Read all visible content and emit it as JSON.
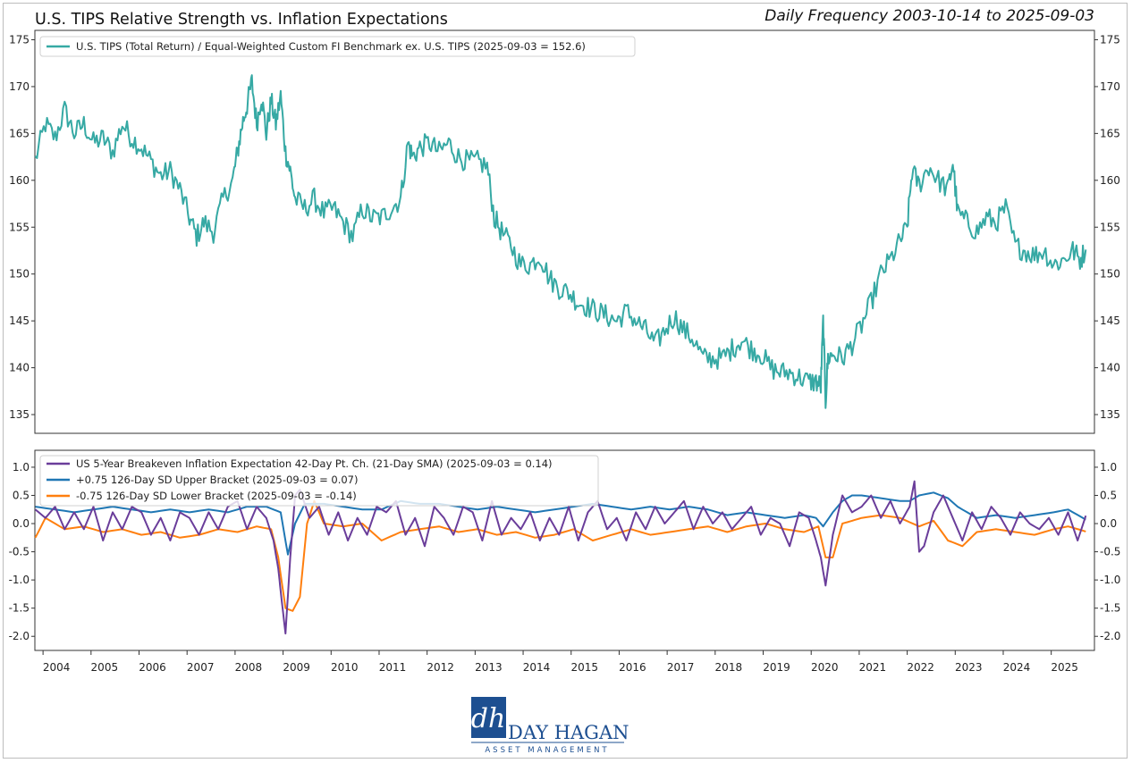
{
  "header": {
    "title": "U.S. TIPS Relative Strength vs. Inflation Expectations",
    "subtitle": "Daily Frequency 2003-10-14 to 2025-09-03"
  },
  "colors": {
    "tips": "#36a9a4",
    "breakeven": "#6a3d9a",
    "upper": "#1f77b4",
    "lower": "#ff7f0e"
  },
  "logo": {
    "mark": "dh",
    "name": "DAY HAGAN",
    "tagline": "ASSET MANAGEMENT"
  },
  "chart_data": [
    {
      "type": "line",
      "panel": "top",
      "ylim": [
        133,
        176
      ],
      "yticks": [
        135,
        140,
        145,
        150,
        155,
        160,
        165,
        170,
        175
      ],
      "xlim": [
        2003.78,
        2025.85
      ],
      "x_tick_labels": [
        "2004",
        "2005",
        "2006",
        "2007",
        "2008",
        "2009",
        "2010",
        "2011",
        "2012",
        "2013",
        "2014",
        "2015",
        "2016",
        "2017",
        "2018",
        "2019",
        "2020",
        "2021",
        "2022",
        "2023",
        "2024",
        "2025"
      ],
      "legend_position": "upper-left",
      "series": [
        {
          "name": "U.S. TIPS (Total Return) / Equal-Weighted Custom FI Benchmark ex. U.S. TIPS (2025-09-03 = 152.6)",
          "color_key": "tips",
          "x": [
            2003.79,
            2004.0,
            2004.2,
            2004.4,
            2004.6,
            2004.8,
            2005.0,
            2005.2,
            2005.4,
            2005.6,
            2005.8,
            2006.0,
            2006.2,
            2006.4,
            2006.6,
            2006.8,
            2007.0,
            2007.15,
            2007.3,
            2007.5,
            2007.7,
            2007.9,
            2008.0,
            2008.1,
            2008.2,
            2008.3,
            2008.4,
            2008.5,
            2008.6,
            2008.7,
            2008.8,
            2008.9,
            2009.0,
            2009.1,
            2009.2,
            2009.4,
            2009.6,
            2009.8,
            2010.0,
            2010.2,
            2010.4,
            2010.6,
            2010.8,
            2011.0,
            2011.2,
            2011.4,
            2011.55,
            2011.65,
            2011.8,
            2012.0,
            2012.2,
            2012.4,
            2012.6,
            2012.8,
            2013.0,
            2013.2,
            2013.35,
            2013.5,
            2013.7,
            2013.9,
            2014.1,
            2014.3,
            2014.5,
            2014.7,
            2014.9,
            2015.1,
            2015.3,
            2015.5,
            2015.7,
            2015.9,
            2016.1,
            2016.3,
            2016.5,
            2016.7,
            2016.9,
            2017.1,
            2017.3,
            2017.5,
            2017.7,
            2017.9,
            2018.1,
            2018.3,
            2018.5,
            2018.7,
            2018.9,
            2019.1,
            2019.3,
            2019.5,
            2019.7,
            2019.9,
            2020.05,
            2020.15,
            2020.2,
            2020.25,
            2020.3,
            2020.4,
            2020.6,
            2020.8,
            2021.0,
            2021.2,
            2021.4,
            2021.6,
            2021.8,
            2021.95,
            2022.05,
            2022.2,
            2022.4,
            2022.6,
            2022.8,
            2022.9,
            2023.0,
            2023.2,
            2023.4,
            2023.6,
            2023.8,
            2024.0,
            2024.2,
            2024.4,
            2024.6,
            2024.8,
            2025.0,
            2025.2,
            2025.4,
            2025.55,
            2025.67
          ],
          "values": [
            162.2,
            166.0,
            164.5,
            167.5,
            165.0,
            166.0,
            164.0,
            164.5,
            163.0,
            166.0,
            164.5,
            163.5,
            162.0,
            160.5,
            161.0,
            159.0,
            156.0,
            154.0,
            155.5,
            154.5,
            158.0,
            160.0,
            163.0,
            166.0,
            168.0,
            170.5,
            166.0,
            169.0,
            165.0,
            168.5,
            166.0,
            169.0,
            163.0,
            161.0,
            158.0,
            157.0,
            158.0,
            156.5,
            157.0,
            155.5,
            154.0,
            157.0,
            156.0,
            156.0,
            157.0,
            158.0,
            164.0,
            162.5,
            163.5,
            164.0,
            163.0,
            164.0,
            162.5,
            162.0,
            162.0,
            161.5,
            156.0,
            154.5,
            153.0,
            151.0,
            151.0,
            152.0,
            149.5,
            148.5,
            148.0,
            147.0,
            146.5,
            146.0,
            145.5,
            145.0,
            146.0,
            145.0,
            144.0,
            142.5,
            144.0,
            145.5,
            144.0,
            143.0,
            141.0,
            141.0,
            141.0,
            142.0,
            143.0,
            142.0,
            141.5,
            140.0,
            139.5,
            139.5,
            139.0,
            138.5,
            138.5,
            138.0,
            145.0,
            136.5,
            141.0,
            141.5,
            141.0,
            142.5,
            144.5,
            147.0,
            150.0,
            151.5,
            153.5,
            155.0,
            161.0,
            159.5,
            161.5,
            160.0,
            159.0,
            162.0,
            156.5,
            155.5,
            154.5,
            156.0,
            155.5,
            157.0,
            153.0,
            152.5,
            152.0,
            152.5,
            151.0,
            151.5,
            152.5,
            151.5,
            152.6
          ]
        }
      ]
    },
    {
      "type": "line",
      "panel": "bottom",
      "ylim": [
        -2.25,
        1.3
      ],
      "yticks": [
        -2.0,
        -1.5,
        -1.0,
        -0.5,
        0.0,
        0.5,
        1.0
      ],
      "ytick_labels": [
        "-2.0",
        "-1.5",
        "-1.0",
        "-0.5",
        "0.0",
        "0.5",
        "1.0"
      ],
      "xlim": [
        2003.78,
        2025.85
      ],
      "x_ticks": [
        2003.95,
        2004.95,
        2005.95,
        2006.95,
        2007.95,
        2008.95,
        2009.95,
        2010.95,
        2011.95,
        2012.95,
        2013.95,
        2014.95,
        2015.95,
        2016.95,
        2017.95,
        2018.95,
        2019.95,
        2020.95,
        2021.95,
        2022.95,
        2023.95,
        2024.95
      ],
      "x_tick_labels": [
        "2004",
        "2005",
        "2006",
        "2007",
        "2008",
        "2009",
        "2010",
        "2011",
        "2012",
        "2013",
        "2014",
        "2015",
        "2016",
        "2017",
        "2018",
        "2019",
        "2020",
        "2021",
        "2022",
        "2023",
        "2024",
        "2025"
      ],
      "legend_position": "upper-left",
      "series": [
        {
          "name": "US 5-Year Breakeven Inflation Expectation 42-Day Pt. Ch. (21-Day SMA) (2025-09-03 = 0.14)",
          "color_key": "breakeven",
          "x": [
            2003.79,
            2004.0,
            2004.2,
            2004.4,
            2004.6,
            2004.8,
            2005.0,
            2005.2,
            2005.4,
            2005.6,
            2005.8,
            2006.0,
            2006.2,
            2006.4,
            2006.6,
            2006.8,
            2007.0,
            2007.2,
            2007.4,
            2007.6,
            2007.8,
            2008.0,
            2008.2,
            2008.4,
            2008.6,
            2008.75,
            2008.85,
            2008.9,
            2009.0,
            2009.1,
            2009.2,
            2009.3,
            2009.5,
            2009.7,
            2009.9,
            2010.1,
            2010.3,
            2010.5,
            2010.7,
            2010.9,
            2011.1,
            2011.3,
            2011.5,
            2011.7,
            2011.9,
            2012.1,
            2012.3,
            2012.5,
            2012.7,
            2012.9,
            2013.1,
            2013.3,
            2013.5,
            2013.7,
            2013.9,
            2014.1,
            2014.3,
            2014.5,
            2014.7,
            2014.9,
            2015.1,
            2015.3,
            2015.5,
            2015.7,
            2015.9,
            2016.1,
            2016.3,
            2016.5,
            2016.7,
            2016.9,
            2017.1,
            2017.3,
            2017.5,
            2017.7,
            2017.9,
            2018.1,
            2018.3,
            2018.5,
            2018.7,
            2018.9,
            2019.1,
            2019.3,
            2019.5,
            2019.7,
            2019.9,
            2020.05,
            2020.15,
            2020.25,
            2020.4,
            2020.6,
            2020.8,
            2021.0,
            2021.2,
            2021.4,
            2021.6,
            2021.8,
            2022.0,
            2022.1,
            2022.2,
            2022.3,
            2022.5,
            2022.7,
            2022.9,
            2023.1,
            2023.3,
            2023.5,
            2023.7,
            2023.9,
            2024.1,
            2024.3,
            2024.5,
            2024.7,
            2024.9,
            2025.1,
            2025.3,
            2025.5,
            2025.67
          ],
          "values": [
            0.25,
            0.1,
            0.3,
            -0.1,
            0.2,
            -0.1,
            0.3,
            -0.3,
            0.2,
            -0.1,
            0.3,
            0.2,
            -0.2,
            0.1,
            -0.3,
            0.2,
            0.1,
            -0.2,
            0.2,
            -0.1,
            0.3,
            0.4,
            -0.1,
            0.3,
            0.1,
            -0.3,
            -0.8,
            -1.2,
            -1.95,
            -0.6,
            0.5,
            0.6,
            0.1,
            0.3,
            -0.2,
            0.2,
            -0.3,
            0.1,
            -0.2,
            0.3,
            0.2,
            0.4,
            -0.2,
            0.1,
            -0.4,
            0.3,
            0.1,
            -0.2,
            0.3,
            0.2,
            -0.3,
            0.4,
            -0.2,
            0.1,
            -0.1,
            0.2,
            -0.3,
            0.1,
            -0.2,
            0.3,
            -0.3,
            0.2,
            0.4,
            -0.1,
            0.1,
            -0.3,
            0.2,
            -0.1,
            0.3,
            0.0,
            0.2,
            0.4,
            -0.1,
            0.3,
            0.0,
            0.2,
            -0.1,
            0.1,
            0.3,
            -0.2,
            0.1,
            0.0,
            -0.4,
            0.2,
            0.1,
            -0.3,
            -0.6,
            -1.1,
            -0.2,
            0.5,
            0.2,
            0.3,
            0.5,
            0.1,
            0.4,
            0.0,
            0.3,
            0.75,
            -0.5,
            -0.4,
            0.2,
            0.5,
            0.1,
            -0.3,
            0.2,
            -0.1,
            0.3,
            0.1,
            -0.2,
            0.2,
            0.0,
            -0.1,
            0.1,
            -0.2,
            0.2,
            -0.3,
            0.14
          ]
        },
        {
          "name": "+0.75 126-Day SD Upper Bracket (2025-09-03 = 0.07)",
          "color_key": "upper",
          "x": [
            2003.79,
            2004.2,
            2004.6,
            2005.0,
            2005.4,
            2005.8,
            2006.2,
            2006.6,
            2007.0,
            2007.4,
            2007.8,
            2008.2,
            2008.6,
            2008.9,
            2009.05,
            2009.2,
            2009.4,
            2009.8,
            2010.2,
            2010.6,
            2011.0,
            2011.4,
            2011.8,
            2012.2,
            2012.6,
            2013.0,
            2013.4,
            2013.8,
            2014.2,
            2014.6,
            2015.0,
            2015.4,
            2015.8,
            2016.2,
            2016.6,
            2017.0,
            2017.4,
            2017.8,
            2018.2,
            2018.6,
            2019.0,
            2019.4,
            2019.8,
            2020.05,
            2020.2,
            2020.4,
            2020.6,
            2020.8,
            2021.0,
            2021.4,
            2021.8,
            2022.0,
            2022.2,
            2022.5,
            2022.8,
            2023.0,
            2023.4,
            2023.8,
            2024.2,
            2024.6,
            2025.0,
            2025.3,
            2025.67
          ],
          "values": [
            0.3,
            0.25,
            0.2,
            0.25,
            0.3,
            0.25,
            0.2,
            0.25,
            0.2,
            0.25,
            0.2,
            0.3,
            0.3,
            0.2,
            -0.55,
            0.0,
            0.35,
            0.35,
            0.3,
            0.25,
            0.25,
            0.4,
            0.35,
            0.35,
            0.3,
            0.25,
            0.3,
            0.25,
            0.2,
            0.25,
            0.3,
            0.35,
            0.3,
            0.25,
            0.3,
            0.25,
            0.3,
            0.25,
            0.15,
            0.2,
            0.15,
            0.1,
            0.15,
            0.1,
            -0.05,
            0.2,
            0.4,
            0.5,
            0.5,
            0.45,
            0.4,
            0.4,
            0.5,
            0.55,
            0.45,
            0.3,
            0.1,
            0.15,
            0.1,
            0.15,
            0.2,
            0.25,
            0.07
          ]
        },
        {
          "name": "-0.75 126-Day SD Lower Bracket (2025-09-03 = -0.14)",
          "color_key": "lower",
          "x": [
            2003.79,
            2004.0,
            2004.4,
            2004.8,
            2005.2,
            2005.6,
            2006.0,
            2006.4,
            2006.8,
            2007.2,
            2007.6,
            2008.0,
            2008.4,
            2008.7,
            2008.85,
            2009.0,
            2009.15,
            2009.3,
            2009.45,
            2009.6,
            2009.8,
            2010.2,
            2010.6,
            2011.0,
            2011.4,
            2011.8,
            2012.2,
            2012.6,
            2013.0,
            2013.4,
            2013.8,
            2014.2,
            2014.6,
            2015.0,
            2015.4,
            2015.8,
            2016.2,
            2016.6,
            2017.0,
            2017.4,
            2017.8,
            2018.2,
            2018.6,
            2019.0,
            2019.4,
            2019.8,
            2020.1,
            2020.25,
            2020.4,
            2020.6,
            2020.8,
            2021.0,
            2021.4,
            2021.8,
            2022.2,
            2022.5,
            2022.8,
            2023.1,
            2023.4,
            2023.8,
            2024.2,
            2024.6,
            2025.0,
            2025.3,
            2025.67
          ],
          "values": [
            -0.25,
            0.1,
            -0.1,
            -0.05,
            -0.15,
            -0.1,
            -0.2,
            -0.15,
            -0.25,
            -0.2,
            -0.1,
            -0.15,
            -0.05,
            -0.1,
            -0.6,
            -1.5,
            -1.55,
            -1.3,
            0.0,
            0.4,
            0.0,
            -0.05,
            0.0,
            -0.3,
            -0.15,
            -0.1,
            -0.05,
            -0.15,
            -0.1,
            -0.2,
            -0.15,
            -0.25,
            -0.2,
            -0.1,
            -0.3,
            -0.2,
            -0.1,
            -0.2,
            -0.15,
            -0.1,
            -0.05,
            -0.15,
            -0.05,
            0.0,
            -0.1,
            -0.15,
            -0.05,
            -0.6,
            -0.6,
            0.0,
            0.05,
            0.1,
            0.15,
            0.1,
            -0.05,
            0.05,
            -0.3,
            -0.4,
            -0.15,
            -0.1,
            -0.15,
            -0.2,
            -0.1,
            -0.05,
            -0.14
          ]
        }
      ]
    }
  ]
}
